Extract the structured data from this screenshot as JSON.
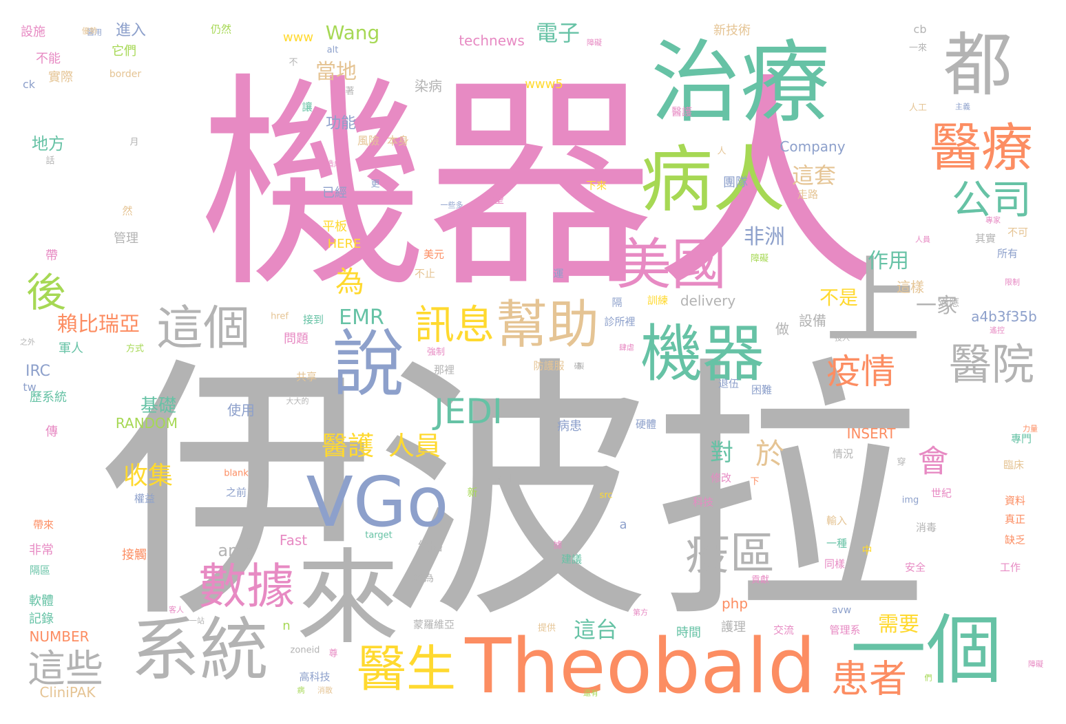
{
  "palette": {
    "pink": "#e78ac3",
    "gray": "#b3b3b3",
    "green": "#66c2a5",
    "blue": "#8da0cb",
    "orange": "#fc8d62",
    "lime": "#a6d854",
    "tan": "#e5c494",
    "yellow": "#ffd92f"
  },
  "words": [
    {
      "text": "機器人",
      "color": "pink"
    },
    {
      "text": "伊波拉",
      "color": "gray"
    },
    {
      "text": "治療",
      "color": "green"
    },
    {
      "text": "都",
      "color": "gray"
    },
    {
      "text": "醫療",
      "color": "orange"
    },
    {
      "text": "病人",
      "color": "lime"
    },
    {
      "text": "公司",
      "color": "green"
    },
    {
      "text": "美國",
      "color": "pink"
    },
    {
      "text": "上",
      "color": "gray"
    },
    {
      "text": "說",
      "color": "blue"
    },
    {
      "text": "這個",
      "color": "gray"
    },
    {
      "text": "訊息",
      "color": "yellow"
    },
    {
      "text": "幫助",
      "color": "tan"
    },
    {
      "text": "機器",
      "color": "green"
    },
    {
      "text": "醫院",
      "color": "gray"
    },
    {
      "text": "疫情",
      "color": "orange"
    },
    {
      "text": "VGo",
      "color": "blue"
    },
    {
      "text": "JEDI",
      "color": "green"
    },
    {
      "text": "疫區",
      "color": "gray"
    },
    {
      "text": "數據",
      "color": "pink"
    },
    {
      "text": "來",
      "color": "gray"
    },
    {
      "text": "系統",
      "color": "gray"
    },
    {
      "text": "醫生",
      "color": "yellow"
    },
    {
      "text": "Theobald",
      "color": "orange"
    },
    {
      "text": "一個",
      "color": "green"
    },
    {
      "text": "患者",
      "color": "orange"
    },
    {
      "text": "這些",
      "color": "gray"
    },
    {
      "text": "後",
      "color": "lime"
    },
    {
      "text": "為",
      "color": "yellow"
    },
    {
      "text": "會",
      "color": "pink"
    },
    {
      "text": "於",
      "color": "tan"
    },
    {
      "text": "一家",
      "color": "gray"
    },
    {
      "text": "作用",
      "color": "green"
    },
    {
      "text": "非洲",
      "color": "blue"
    },
    {
      "text": "這套",
      "color": "tan"
    },
    {
      "text": "醫護",
      "color": "yellow"
    },
    {
      "text": "人員",
      "color": "yellow"
    },
    {
      "text": "收集",
      "color": "yellow"
    },
    {
      "text": "對",
      "color": "green"
    },
    {
      "text": "EMR",
      "color": "green"
    },
    {
      "text": "賴比瑞亞",
      "color": "orange"
    },
    {
      "text": "不是",
      "color": "yellow"
    },
    {
      "text": "Wang",
      "color": "lime"
    },
    {
      "text": "電子",
      "color": "green"
    },
    {
      "text": "當地",
      "color": "tan"
    },
    {
      "text": "amp",
      "color": "gray"
    },
    {
      "text": "這台",
      "color": "green"
    },
    {
      "text": "需要",
      "color": "yellow"
    },
    {
      "text": "基礎",
      "color": "green"
    },
    {
      "text": "RANDOM",
      "color": "lime"
    },
    {
      "text": "Fast",
      "color": "pink"
    },
    {
      "text": "CliniPAK",
      "color": "tan"
    },
    {
      "text": "NUMBER",
      "color": "orange"
    },
    {
      "text": "INSERT",
      "color": "orange"
    },
    {
      "text": "delivery",
      "color": "gray"
    },
    {
      "text": "a4b3f35b",
      "color": "blue"
    },
    {
      "text": "technews",
      "color": "pink"
    },
    {
      "text": "Company",
      "color": "blue"
    },
    {
      "text": "HERE",
      "color": "yellow"
    },
    {
      "text": "www5",
      "color": "yellow"
    },
    {
      "text": "www",
      "color": "yellow"
    },
    {
      "text": "php",
      "color": "orange"
    },
    {
      "text": "IRC",
      "color": "blue"
    },
    {
      "text": "ck",
      "color": "blue"
    },
    {
      "text": "cb",
      "color": "gray"
    },
    {
      "text": "tw",
      "color": "blue"
    },
    {
      "text": "alt",
      "color": "blue"
    },
    {
      "text": "href",
      "color": "tan"
    },
    {
      "text": "blank",
      "color": "orange"
    },
    {
      "text": "src",
      "color": "yellow"
    },
    {
      "text": "img",
      "color": "blue"
    },
    {
      "text": "target",
      "color": "green"
    },
    {
      "text": "zoneid",
      "color": "gray"
    },
    {
      "text": "avw",
      "color": "blue"
    },
    {
      "text": "border",
      "color": "tan"
    },
    {
      "text": "n",
      "color": "lime"
    },
    {
      "text": "a",
      "color": "blue"
    },
    {
      "text": "設施",
      "color": "pink"
    },
    {
      "text": "進入",
      "color": "blue"
    },
    {
      "text": "仍然",
      "color": "lime"
    },
    {
      "text": "新技術",
      "color": "tan"
    },
    {
      "text": "不能",
      "color": "pink"
    },
    {
      "text": "它們",
      "color": "lime"
    },
    {
      "text": "實際",
      "color": "tan"
    },
    {
      "text": "染病",
      "color": "gray"
    },
    {
      "text": "功能",
      "color": "blue"
    },
    {
      "text": "地方",
      "color": "green"
    },
    {
      "text": "風險",
      "color": "tan"
    },
    {
      "text": "本身",
      "color": "tan"
    },
    {
      "text": "管理",
      "color": "gray"
    },
    {
      "text": "平板",
      "color": "yellow"
    },
    {
      "text": "已經",
      "color": "blue"
    },
    {
      "text": "團隊",
      "color": "blue"
    },
    {
      "text": "希望",
      "color": "pink"
    },
    {
      "text": "下來",
      "color": "yellow"
    },
    {
      "text": "走路",
      "color": "tan"
    },
    {
      "text": "醫護",
      "color": "pink"
    },
    {
      "text": "人工",
      "color": "tan"
    },
    {
      "text": "其實",
      "color": "gray"
    },
    {
      "text": "所有",
      "color": "blue"
    },
    {
      "text": "不可",
      "color": "tan"
    },
    {
      "text": "這樣",
      "color": "tan"
    },
    {
      "text": "適應",
      "color": "gray"
    },
    {
      "text": "訓練",
      "color": "yellow"
    },
    {
      "text": "診所裡",
      "color": "blue"
    },
    {
      "text": "隔",
      "color": "blue"
    },
    {
      "text": "障礙",
      "color": "lime"
    },
    {
      "text": "美元",
      "color": "orange"
    },
    {
      "text": "不止",
      "color": "tan"
    },
    {
      "text": "運",
      "color": "blue"
    },
    {
      "text": "設備",
      "color": "gray"
    },
    {
      "text": "做",
      "color": "gray"
    },
    {
      "text": "防護服",
      "color": "tan"
    },
    {
      "text": "那裡",
      "color": "gray"
    },
    {
      "text": "問題",
      "color": "pink"
    },
    {
      "text": "接到",
      "color": "green"
    },
    {
      "text": "軍人",
      "color": "green"
    },
    {
      "text": "方式",
      "color": "lime"
    },
    {
      "text": "歷系統",
      "color": "green"
    },
    {
      "text": "共享",
      "color": "tan"
    },
    {
      "text": "使用",
      "color": "blue"
    },
    {
      "text": "病患",
      "color": "blue"
    },
    {
      "text": "硬體",
      "color": "blue"
    },
    {
      "text": "退伍",
      "color": "blue"
    },
    {
      "text": "困難",
      "color": "blue"
    },
    {
      "text": "情況",
      "color": "gray"
    },
    {
      "text": "修改",
      "color": "pink"
    },
    {
      "text": "專門",
      "color": "green"
    },
    {
      "text": "臨床",
      "color": "tan"
    },
    {
      "text": "權益",
      "color": "blue"
    },
    {
      "text": "之前",
      "color": "blue"
    },
    {
      "text": "護士",
      "color": "gray"
    },
    {
      "text": "科技",
      "color": "pink"
    },
    {
      "text": "世紀",
      "color": "pink"
    },
    {
      "text": "資料",
      "color": "orange"
    },
    {
      "text": "真正",
      "color": "orange"
    },
    {
      "text": "缺乏",
      "color": "orange"
    },
    {
      "text": "消毒",
      "color": "gray"
    },
    {
      "text": "輸入",
      "color": "tan"
    },
    {
      "text": "一種",
      "color": "green"
    },
    {
      "text": "同樣",
      "color": "pink"
    },
    {
      "text": "中",
      "color": "yellow"
    },
    {
      "text": "工作",
      "color": "pink"
    },
    {
      "text": "安全",
      "color": "pink"
    },
    {
      "text": "建議",
      "color": "green"
    },
    {
      "text": "接觸",
      "color": "orange"
    },
    {
      "text": "網路",
      "color": "gray"
    },
    {
      "text": "名為",
      "color": "gray"
    },
    {
      "text": "非常",
      "color": "pink"
    },
    {
      "text": "隔區",
      "color": "green"
    },
    {
      "text": "帶來",
      "color": "orange"
    },
    {
      "text": "軟體",
      "color": "green"
    },
    {
      "text": "記錄",
      "color": "green"
    },
    {
      "text": "蒙羅維亞",
      "color": "gray"
    },
    {
      "text": "時間",
      "color": "green"
    },
    {
      "text": "護理",
      "color": "gray"
    },
    {
      "text": "交流",
      "color": "pink"
    },
    {
      "text": "管理系",
      "color": "pink"
    },
    {
      "text": "提供",
      "color": "tan"
    },
    {
      "text": "高科技",
      "color": "blue"
    },
    {
      "text": "傳",
      "color": "pink"
    },
    {
      "text": "帶",
      "color": "pink"
    },
    {
      "text": "然",
      "color": "tan"
    },
    {
      "text": "話",
      "color": "gray"
    },
    {
      "text": "月",
      "color": "gray"
    },
    {
      "text": "不",
      "color": "gray"
    },
    {
      "text": "著",
      "color": "gray"
    },
    {
      "text": "讓",
      "color": "green"
    },
    {
      "text": "更",
      "color": "blue"
    },
    {
      "text": "人",
      "color": "tan"
    },
    {
      "text": "下",
      "color": "orange"
    },
    {
      "text": "新",
      "color": "lime"
    },
    {
      "text": "穿",
      "color": "gray"
    },
    {
      "text": "據",
      "color": "pink"
    },
    {
      "text": "一來",
      "color": "gray"
    },
    {
      "text": "一站",
      "color": "gray"
    },
    {
      "text": "客人",
      "color": "pink"
    },
    {
      "text": "之外",
      "color": "gray"
    },
    {
      "text": "造成",
      "color": "pink"
    },
    {
      "text": "障礙",
      "color": "pink"
    },
    {
      "text": "限制",
      "color": "pink"
    },
    {
      "text": "研",
      "color": "gray"
    },
    {
      "text": "一些多",
      "color": "blue"
    },
    {
      "text": "人員",
      "color": "pink"
    },
    {
      "text": "投入",
      "color": "gray"
    },
    {
      "text": "遙控",
      "color": "pink"
    },
    {
      "text": "醫用",
      "color": "blue"
    },
    {
      "text": "強制",
      "color": "pink"
    },
    {
      "text": "製",
      "color": "gray"
    },
    {
      "text": "大大的",
      "color": "gray"
    },
    {
      "text": "貢獻",
      "color": "pink"
    },
    {
      "text": "第方",
      "color": "pink"
    },
    {
      "text": "還有",
      "color": "lime"
    },
    {
      "text": "病",
      "color": "lime"
    },
    {
      "text": "尊",
      "color": "pink"
    },
    {
      "text": "消散",
      "color": "tan"
    },
    {
      "text": "力量",
      "color": "orange"
    },
    {
      "text": "們",
      "color": "lime"
    },
    {
      "text": "障礙",
      "color": "pink"
    },
    {
      "text": "肆虐",
      "color": "pink"
    },
    {
      "text": "優勢",
      "color": "tan"
    },
    {
      "text": "專家",
      "color": "pink"
    },
    {
      "text": "主義",
      "color": "blue"
    }
  ]
}
